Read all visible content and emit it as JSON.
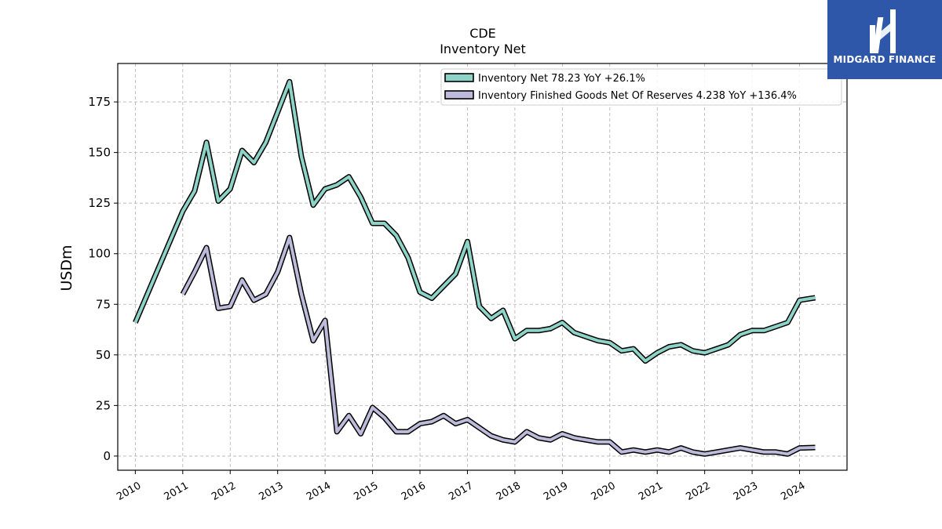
{
  "logo": {
    "text": "MIDGARD FINANCE"
  },
  "chart_data": {
    "type": "line",
    "title": "CDE",
    "subtitle": "Inventory Net",
    "ylabel": "USDm",
    "xlabel": "",
    "xlim": [
      2009.63,
      2025.0
    ],
    "ylim": [
      -7,
      194
    ],
    "yticks": [
      0,
      25,
      50,
      75,
      100,
      125,
      150,
      175
    ],
    "xticks": [
      {
        "label": "2010",
        "value": 2010
      },
      {
        "label": "2011",
        "value": 2011
      },
      {
        "label": "2012",
        "value": 2012
      },
      {
        "label": "2013",
        "value": 2013
      },
      {
        "label": "2014",
        "value": 2014
      },
      {
        "label": "2015",
        "value": 2015
      },
      {
        "label": "2016",
        "value": 2016
      },
      {
        "label": "2017",
        "value": 2017
      },
      {
        "label": "2018",
        "value": 2018
      },
      {
        "label": "2019",
        "value": 2019
      },
      {
        "label": "2020",
        "value": 2020
      },
      {
        "label": "2021",
        "value": 2021
      },
      {
        "label": "2022",
        "value": 2022
      },
      {
        "label": "2023",
        "value": 2023
      },
      {
        "label": "2024",
        "value": 2024
      }
    ],
    "grid": true,
    "legend_position": "top-right",
    "series": [
      {
        "name": "Inventory Net  78.23 YoY +26.1%",
        "color": "#8dd3c7",
        "points": [
          [
            2010.0,
            66
          ],
          [
            2011.0,
            121
          ],
          [
            2011.25,
            131
          ],
          [
            2011.5,
            155
          ],
          [
            2011.75,
            126
          ],
          [
            2012.0,
            132
          ],
          [
            2012.25,
            151
          ],
          [
            2012.5,
            145
          ],
          [
            2012.75,
            155
          ],
          [
            2013.0,
            170
          ],
          [
            2013.25,
            185
          ],
          [
            2013.5,
            148
          ],
          [
            2013.75,
            124
          ],
          [
            2014.0,
            132
          ],
          [
            2014.25,
            134
          ],
          [
            2014.5,
            138
          ],
          [
            2014.75,
            128
          ],
          [
            2015.0,
            115
          ],
          [
            2015.25,
            115
          ],
          [
            2015.5,
            109
          ],
          [
            2015.75,
            98
          ],
          [
            2016.0,
            81
          ],
          [
            2016.25,
            78
          ],
          [
            2016.5,
            84
          ],
          [
            2016.75,
            90
          ],
          [
            2017.0,
            106
          ],
          [
            2017.25,
            74
          ],
          [
            2017.5,
            68
          ],
          [
            2017.75,
            72
          ],
          [
            2018.0,
            58
          ],
          [
            2018.25,
            62
          ],
          [
            2018.5,
            62
          ],
          [
            2018.75,
            63
          ],
          [
            2019.0,
            66
          ],
          [
            2019.25,
            61
          ],
          [
            2019.5,
            59
          ],
          [
            2019.75,
            57
          ],
          [
            2020.0,
            56
          ],
          [
            2020.25,
            52
          ],
          [
            2020.5,
            53
          ],
          [
            2020.75,
            47
          ],
          [
            2021.0,
            51
          ],
          [
            2021.25,
            54
          ],
          [
            2021.5,
            55
          ],
          [
            2021.75,
            52
          ],
          [
            2022.0,
            51
          ],
          [
            2022.25,
            53
          ],
          [
            2022.5,
            55
          ],
          [
            2022.75,
            60
          ],
          [
            2023.0,
            62
          ],
          [
            2023.25,
            62
          ],
          [
            2023.5,
            64
          ],
          [
            2023.75,
            66
          ],
          [
            2024.0,
            77
          ],
          [
            2024.33,
            78.23
          ]
        ]
      },
      {
        "name": "Inventory Finished Goods Net Of Reserves  4.238 YoY +136.4%",
        "color": "#bebada",
        "points": [
          [
            2011.0,
            80
          ],
          [
            2011.25,
            91
          ],
          [
            2011.5,
            103
          ],
          [
            2011.75,
            73
          ],
          [
            2012.0,
            74
          ],
          [
            2012.25,
            87
          ],
          [
            2012.5,
            77
          ],
          [
            2012.75,
            80
          ],
          [
            2013.0,
            91
          ],
          [
            2013.25,
            108
          ],
          [
            2013.5,
            80
          ],
          [
            2013.75,
            57
          ],
          [
            2014.0,
            67
          ],
          [
            2014.25,
            12
          ],
          [
            2014.5,
            20
          ],
          [
            2014.75,
            11
          ],
          [
            2015.0,
            24
          ],
          [
            2015.25,
            19
          ],
          [
            2015.5,
            12
          ],
          [
            2015.75,
            12
          ],
          [
            2016.0,
            16
          ],
          [
            2016.25,
            17
          ],
          [
            2016.5,
            20
          ],
          [
            2016.75,
            16
          ],
          [
            2017.0,
            18
          ],
          [
            2017.25,
            14
          ],
          [
            2017.5,
            10
          ],
          [
            2017.75,
            8
          ],
          [
            2018.0,
            7
          ],
          [
            2018.25,
            12
          ],
          [
            2018.5,
            9
          ],
          [
            2018.75,
            8
          ],
          [
            2019.0,
            11
          ],
          [
            2019.25,
            9
          ],
          [
            2019.5,
            8
          ],
          [
            2019.75,
            7
          ],
          [
            2020.0,
            7
          ],
          [
            2020.25,
            2
          ],
          [
            2020.5,
            3
          ],
          [
            2020.75,
            2
          ],
          [
            2021.0,
            3
          ],
          [
            2021.25,
            2
          ],
          [
            2021.5,
            4
          ],
          [
            2021.75,
            2
          ],
          [
            2022.0,
            1
          ],
          [
            2022.25,
            2
          ],
          [
            2022.5,
            3
          ],
          [
            2022.75,
            4
          ],
          [
            2023.0,
            3
          ],
          [
            2023.25,
            2
          ],
          [
            2023.5,
            2
          ],
          [
            2023.75,
            1
          ],
          [
            2024.0,
            4
          ],
          [
            2024.33,
            4.238
          ]
        ]
      }
    ]
  }
}
